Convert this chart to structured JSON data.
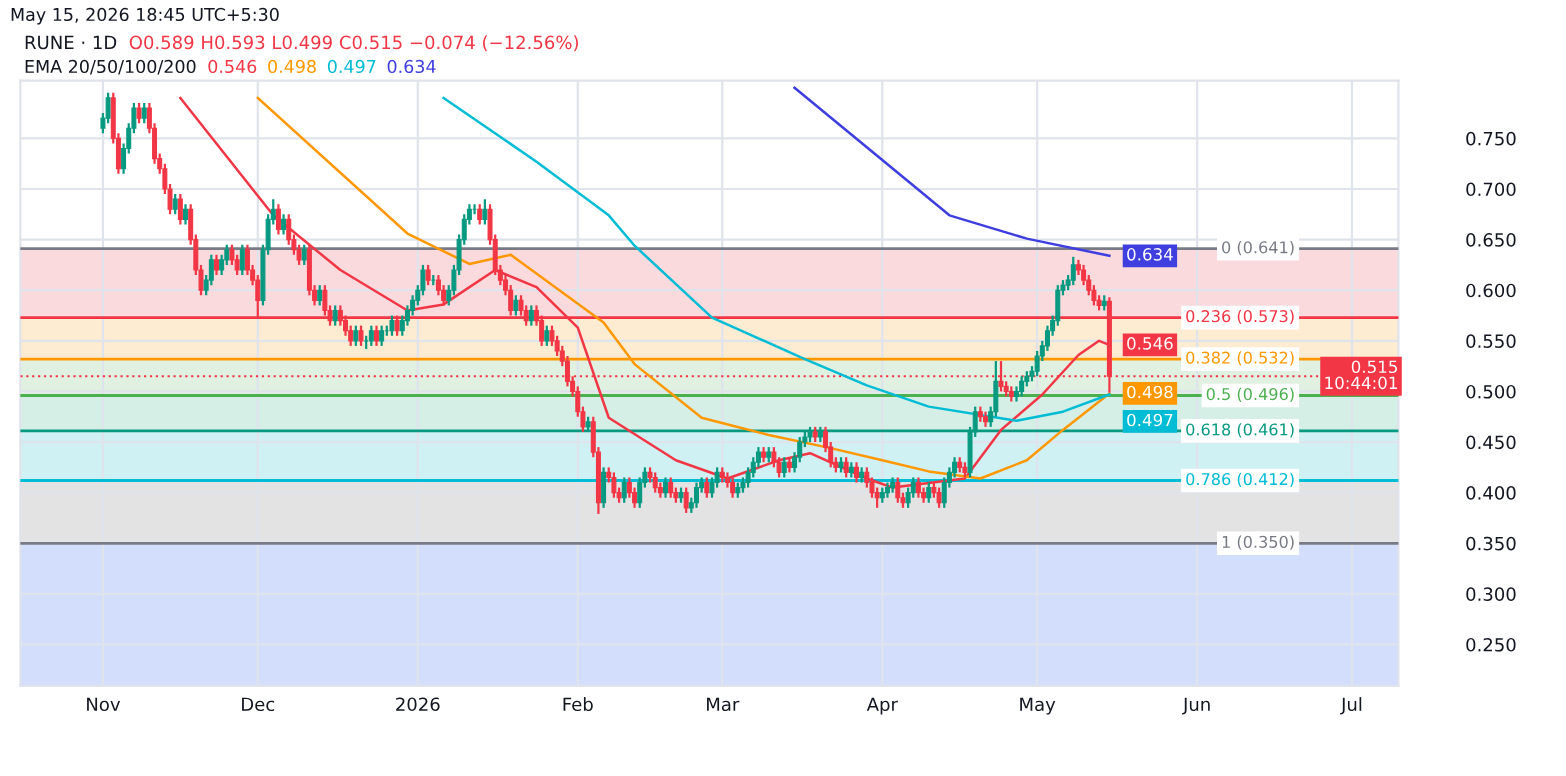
{
  "chart_data": {
    "type": "candlestick",
    "title": "RUNE · 1D",
    "subtitle": "O0.589 H0.593 L0.499 C0.515 −0.074 (−12.56%)",
    "annotations": [
      "May 15, 2026 18:45 UTC+5:30",
      "EMA 20/50/100/200"
    ],
    "grid": true,
    "xlim": [
      "2025-10-16",
      "2026-07-10"
    ],
    "xticks": [
      {
        "value": "2025-11-01",
        "label": "Nov"
      },
      {
        "value": "2025-12-01",
        "label": "Dec"
      },
      {
        "value": "2026-01-01",
        "label": "2026"
      },
      {
        "value": "2026-02-01",
        "label": "Feb"
      },
      {
        "value": "2026-03-01",
        "label": "Mar"
      },
      {
        "value": "2026-04-01",
        "label": "Apr"
      },
      {
        "value": "2026-05-01",
        "label": "May"
      },
      {
        "value": "2026-06-01",
        "label": "Jun"
      },
      {
        "value": "2026-07-01",
        "label": "Jul"
      }
    ],
    "ylim": [
      0.209,
      0.807
    ],
    "yticks": [
      {
        "value": 0.25,
        "label": "0.250"
      },
      {
        "value": 0.3,
        "label": "0.300"
      },
      {
        "value": 0.35,
        "label": "0.350"
      },
      {
        "value": 0.4,
        "label": "0.400"
      },
      {
        "value": 0.45,
        "label": "0.450"
      },
      {
        "value": 0.5,
        "label": "0.500"
      },
      {
        "value": 0.55,
        "label": "0.550"
      },
      {
        "value": 0.6,
        "label": "0.600"
      },
      {
        "value": 0.65,
        "label": "0.650"
      },
      {
        "value": 0.7,
        "label": "0.700"
      },
      {
        "value": 0.75,
        "label": "0.750"
      }
    ],
    "bands": [
      {
        "axis": "y",
        "from": 0.573,
        "to": 0.641,
        "color": "#fbdadd"
      },
      {
        "axis": "y",
        "from": 0.532,
        "to": 0.573,
        "color": "#fdebd2"
      },
      {
        "axis": "y",
        "from": 0.496,
        "to": 0.532,
        "color": "#e0f1e1"
      },
      {
        "axis": "y",
        "from": 0.461,
        "to": 0.496,
        "color": "#d5efe6"
      },
      {
        "axis": "y",
        "from": 0.412,
        "to": 0.461,
        "color": "#cff1f3"
      },
      {
        "axis": "y",
        "from": 0.35,
        "to": 0.412,
        "color": "#e3e3e3"
      },
      {
        "axis": "y",
        "from": 0.209,
        "to": 0.35,
        "color": "#d3defc"
      }
    ],
    "ref_lines": [
      {
        "axis": "y",
        "value": 0.641,
        "label": "0 (0.641)",
        "color": "#787b86",
        "line_style": "solid"
      },
      {
        "axis": "y",
        "value": 0.573,
        "label": "0.236 (0.573)",
        "color": "#f23645",
        "line_style": "solid"
      },
      {
        "axis": "y",
        "value": 0.532,
        "label": "0.382 (0.532)",
        "color": "#ff9800",
        "line_style": "solid"
      },
      {
        "axis": "y",
        "value": 0.496,
        "label": "0.5 (0.496)",
        "color": "#4caf50",
        "line_style": "solid"
      },
      {
        "axis": "y",
        "value": 0.461,
        "label": "0.618 (0.461)",
        "color": "#089981",
        "line_style": "solid"
      },
      {
        "axis": "y",
        "value": 0.412,
        "label": "0.786 (0.412)",
        "color": "#00bcd4",
        "line_style": "solid"
      },
      {
        "axis": "y",
        "value": 0.35,
        "label": "1 (0.350)",
        "color": "#787b86",
        "line_style": "solid"
      },
      {
        "axis": "y",
        "value": 0.515,
        "label": "0.515\n10:44:01",
        "color": "#f23645",
        "line_style": "dotted"
      }
    ],
    "series": [
      {
        "type": "line",
        "color": "#f23645",
        "x": [
          "2025-11-16",
          "2025-12-04",
          "2025-12-17",
          "2025-12-30",
          "2026-01-06",
          "2026-01-16",
          "2026-01-24",
          "2026-02-01",
          "2026-02-07",
          "2026-02-20",
          "2026-03-02",
          "2026-03-12",
          "2026-03-18",
          "2026-03-29",
          "2026-04-03",
          "2026-04-17",
          "2026-04-24",
          "2026-05-02",
          "2026-05-09",
          "2026-05-13",
          "2026-05-15"
        ],
        "values": [
          0.79,
          0.674,
          0.62,
          0.58,
          0.586,
          0.62,
          0.603,
          0.563,
          0.474,
          0.432,
          0.414,
          0.432,
          0.439,
          0.414,
          0.405,
          0.414,
          0.462,
          0.497,
          0.536,
          0.55,
          0.546
        ],
        "value_labels": [
          null,
          null,
          null,
          null,
          null,
          null,
          null,
          null,
          null,
          null,
          null,
          null,
          null,
          null,
          null,
          null,
          null,
          null,
          null,
          null,
          "0.546"
        ]
      },
      {
        "type": "line",
        "color": "#ff9800",
        "x": [
          "2025-12-01",
          "2025-12-30",
          "2026-01-11",
          "2026-01-19",
          "2026-02-06",
          "2026-02-12",
          "2026-02-25",
          "2026-03-10",
          "2026-03-22",
          "2026-04-01",
          "2026-04-10",
          "2026-04-20",
          "2026-04-29",
          "2026-05-06",
          "2026-05-15"
        ],
        "values": [
          0.79,
          0.656,
          0.626,
          0.635,
          0.568,
          0.527,
          0.474,
          0.457,
          0.444,
          0.432,
          0.421,
          0.414,
          0.432,
          0.462,
          0.498
        ],
        "value_labels": [
          null,
          null,
          null,
          null,
          null,
          null,
          null,
          null,
          null,
          null,
          null,
          null,
          null,
          null,
          "0.498"
        ]
      },
      {
        "type": "line",
        "color": "#00bcd4",
        "x": [
          "2026-01-06",
          "2026-01-24",
          "2026-02-07",
          "2026-02-12",
          "2026-02-27",
          "2026-03-17",
          "2026-03-29",
          "2026-04-10",
          "2026-04-27",
          "2026-05-06",
          "2026-05-15"
        ],
        "values": [
          0.79,
          0.727,
          0.674,
          0.644,
          0.573,
          0.532,
          0.506,
          0.485,
          0.471,
          0.48,
          0.497
        ],
        "value_labels": [
          null,
          null,
          null,
          null,
          null,
          null,
          null,
          null,
          null,
          null,
          "0.497"
        ]
      },
      {
        "type": "line",
        "color": "#3f3fe0",
        "x": [
          "2026-03-15",
          "2026-04-14",
          "2026-04-29",
          "2026-05-15"
        ],
        "values": [
          0.8,
          0.674,
          0.651,
          0.634
        ],
        "value_labels": [
          null,
          null,
          null,
          "0.634"
        ]
      }
    ],
    "x": [
      "2025-11-01",
      "2025-11-02",
      "2025-11-03",
      "2025-11-04",
      "2025-11-05",
      "2025-11-06",
      "2025-11-07",
      "2025-11-08",
      "2025-11-09",
      "2025-11-10",
      "2025-11-11",
      "2025-11-12",
      "2025-11-13",
      "2025-11-14",
      "2025-11-15",
      "2025-11-16",
      "2025-11-17",
      "2025-11-18",
      "2025-11-19",
      "2025-11-20",
      "2025-11-21",
      "2025-11-22",
      "2025-11-23",
      "2025-11-24",
      "2025-11-25",
      "2025-11-26",
      "2025-11-27",
      "2025-11-28",
      "2025-11-29",
      "2025-11-30",
      "2025-12-01",
      "2025-12-02",
      "2025-12-03",
      "2025-12-04",
      "2025-12-05",
      "2025-12-06",
      "2025-12-07",
      "2025-12-08",
      "2025-12-09",
      "2025-12-10",
      "2025-12-11",
      "2025-12-12",
      "2025-12-13",
      "2025-12-14",
      "2025-12-15",
      "2025-12-16",
      "2025-12-17",
      "2025-12-18",
      "2025-12-19",
      "2025-12-20",
      "2025-12-21",
      "2025-12-22",
      "2025-12-23",
      "2025-12-24",
      "2025-12-25",
      "2025-12-26",
      "2025-12-27",
      "2025-12-28",
      "2025-12-29",
      "2025-12-30",
      "2025-12-31",
      "2026-01-01",
      "2026-01-02",
      "2026-01-03",
      "2026-01-04",
      "2026-01-05",
      "2026-01-06",
      "2026-01-07",
      "2026-01-08",
      "2026-01-09",
      "2026-01-10",
      "2026-01-11",
      "2026-01-12",
      "2026-01-13",
      "2026-01-14",
      "2026-01-15",
      "2026-01-16",
      "2026-01-17",
      "2026-01-18",
      "2026-01-19",
      "2026-01-20",
      "2026-01-21",
      "2026-01-22",
      "2026-01-23",
      "2026-01-24",
      "2026-01-25",
      "2026-01-26",
      "2026-01-27",
      "2026-01-28",
      "2026-01-29",
      "2026-01-30",
      "2026-01-31",
      "2026-02-01",
      "2026-02-02",
      "2026-02-03",
      "2026-02-04",
      "2026-02-05",
      "2026-02-06",
      "2026-02-07",
      "2026-02-08",
      "2026-02-09",
      "2026-02-10",
      "2026-02-11",
      "2026-02-12",
      "2026-02-13",
      "2026-02-14",
      "2026-02-15",
      "2026-02-16",
      "2026-02-17",
      "2026-02-18",
      "2026-02-19",
      "2026-02-20",
      "2026-02-21",
      "2026-02-22",
      "2026-02-23",
      "2026-02-24",
      "2026-02-25",
      "2026-02-26",
      "2026-02-27",
      "2026-02-28",
      "2026-03-01",
      "2026-03-02",
      "2026-03-03",
      "2026-03-04",
      "2026-03-05",
      "2026-03-06",
      "2026-03-07",
      "2026-03-08",
      "2026-03-09",
      "2026-03-10",
      "2026-03-11",
      "2026-03-12",
      "2026-03-13",
      "2026-03-14",
      "2026-03-15",
      "2026-03-16",
      "2026-03-17",
      "2026-03-18",
      "2026-03-19",
      "2026-03-20",
      "2026-03-21",
      "2026-03-22",
      "2026-03-23",
      "2026-03-24",
      "2026-03-25",
      "2026-03-26",
      "2026-03-27",
      "2026-03-28",
      "2026-03-29",
      "2026-03-30",
      "2026-03-31",
      "2026-04-01",
      "2026-04-02",
      "2026-04-03",
      "2026-04-04",
      "2026-04-05",
      "2026-04-06",
      "2026-04-07",
      "2026-04-08",
      "2026-04-09",
      "2026-04-10",
      "2026-04-11",
      "2026-04-12",
      "2026-04-13",
      "2026-04-14",
      "2026-04-15",
      "2026-04-16",
      "2026-04-17",
      "2026-04-18",
      "2026-04-19",
      "2026-04-20",
      "2026-04-21",
      "2026-04-22",
      "2026-04-23",
      "2026-04-24",
      "2026-04-25",
      "2026-04-26",
      "2026-04-27",
      "2026-04-28",
      "2026-04-29",
      "2026-04-30",
      "2026-05-01",
      "2026-05-02",
      "2026-05-03",
      "2026-05-04",
      "2026-05-05",
      "2026-05-06",
      "2026-05-07",
      "2026-05-08",
      "2026-05-09",
      "2026-05-10",
      "2026-05-11",
      "2026-05-12",
      "2026-05-13",
      "2026-05-14",
      "2026-05-15"
    ],
    "ohlc": [
      [
        0.76,
        0.775,
        0.755,
        0.77
      ],
      [
        0.77,
        0.795,
        0.765,
        0.79
      ],
      [
        0.79,
        0.795,
        0.745,
        0.75
      ],
      [
        0.75,
        0.755,
        0.715,
        0.72
      ],
      [
        0.72,
        0.745,
        0.715,
        0.74
      ],
      [
        0.74,
        0.765,
        0.735,
        0.76
      ],
      [
        0.76,
        0.785,
        0.755,
        0.78
      ],
      [
        0.78,
        0.785,
        0.765,
        0.77
      ],
      [
        0.77,
        0.785,
        0.765,
        0.78
      ],
      [
        0.78,
        0.785,
        0.755,
        0.76
      ],
      [
        0.76,
        0.765,
        0.725,
        0.73
      ],
      [
        0.73,
        0.735,
        0.715,
        0.72
      ],
      [
        0.72,
        0.725,
        0.695,
        0.7
      ],
      [
        0.7,
        0.705,
        0.675,
        0.68
      ],
      [
        0.68,
        0.695,
        0.675,
        0.69
      ],
      [
        0.69,
        0.695,
        0.665,
        0.67
      ],
      [
        0.67,
        0.685,
        0.665,
        0.68
      ],
      [
        0.68,
        0.685,
        0.645,
        0.65
      ],
      [
        0.65,
        0.655,
        0.615,
        0.62
      ],
      [
        0.62,
        0.625,
        0.595,
        0.6
      ],
      [
        0.6,
        0.615,
        0.595,
        0.61
      ],
      [
        0.61,
        0.635,
        0.605,
        0.63
      ],
      [
        0.63,
        0.635,
        0.615,
        0.62
      ],
      [
        0.62,
        0.635,
        0.615,
        0.63
      ],
      [
        0.63,
        0.645,
        0.625,
        0.64
      ],
      [
        0.64,
        0.645,
        0.625,
        0.63
      ],
      [
        0.63,
        0.635,
        0.615,
        0.62
      ],
      [
        0.62,
        0.645,
        0.615,
        0.64
      ],
      [
        0.64,
        0.645,
        0.615,
        0.62
      ],
      [
        0.62,
        0.625,
        0.605,
        0.61
      ],
      [
        0.61,
        0.615,
        0.573,
        0.59
      ],
      [
        0.59,
        0.645,
        0.585,
        0.64
      ],
      [
        0.64,
        0.675,
        0.635,
        0.67
      ],
      [
        0.67,
        0.69,
        0.665,
        0.68
      ],
      [
        0.68,
        0.685,
        0.655,
        0.66
      ],
      [
        0.66,
        0.675,
        0.655,
        0.67
      ],
      [
        0.67,
        0.675,
        0.645,
        0.65
      ],
      [
        0.65,
        0.655,
        0.635,
        0.64
      ],
      [
        0.64,
        0.645,
        0.625,
        0.63
      ],
      [
        0.63,
        0.645,
        0.625,
        0.64
      ],
      [
        0.64,
        0.645,
        0.595,
        0.6
      ],
      [
        0.6,
        0.605,
        0.585,
        0.59
      ],
      [
        0.59,
        0.605,
        0.585,
        0.6
      ],
      [
        0.6,
        0.605,
        0.575,
        0.58
      ],
      [
        0.58,
        0.585,
        0.565,
        0.57
      ],
      [
        0.57,
        0.585,
        0.565,
        0.58
      ],
      [
        0.58,
        0.585,
        0.565,
        0.57
      ],
      [
        0.57,
        0.575,
        0.555,
        0.56
      ],
      [
        0.56,
        0.565,
        0.545,
        0.55
      ],
      [
        0.55,
        0.565,
        0.545,
        0.56
      ],
      [
        0.56,
        0.565,
        0.545,
        0.55
      ],
      [
        0.55,
        0.555,
        0.542,
        0.55
      ],
      [
        0.55,
        0.565,
        0.545,
        0.56
      ],
      [
        0.56,
        0.565,
        0.545,
        0.55
      ],
      [
        0.55,
        0.565,
        0.545,
        0.56
      ],
      [
        0.56,
        0.565,
        0.555,
        0.56
      ],
      [
        0.56,
        0.575,
        0.555,
        0.57
      ],
      [
        0.57,
        0.575,
        0.555,
        0.56
      ],
      [
        0.56,
        0.575,
        0.555,
        0.57
      ],
      [
        0.57,
        0.585,
        0.565,
        0.58
      ],
      [
        0.58,
        0.595,
        0.575,
        0.59
      ],
      [
        0.59,
        0.605,
        0.585,
        0.6
      ],
      [
        0.6,
        0.625,
        0.595,
        0.62
      ],
      [
        0.62,
        0.625,
        0.605,
        0.61
      ],
      [
        0.61,
        0.615,
        0.605,
        0.61
      ],
      [
        0.61,
        0.615,
        0.595,
        0.6
      ],
      [
        0.6,
        0.605,
        0.585,
        0.59
      ],
      [
        0.59,
        0.605,
        0.585,
        0.6
      ],
      [
        0.6,
        0.625,
        0.595,
        0.62
      ],
      [
        0.62,
        0.655,
        0.615,
        0.65
      ],
      [
        0.65,
        0.675,
        0.645,
        0.67
      ],
      [
        0.67,
        0.685,
        0.665,
        0.68
      ],
      [
        0.68,
        0.685,
        0.675,
        0.68
      ],
      [
        0.68,
        0.685,
        0.665,
        0.67
      ],
      [
        0.67,
        0.69,
        0.665,
        0.68
      ],
      [
        0.68,
        0.685,
        0.645,
        0.65
      ],
      [
        0.65,
        0.655,
        0.615,
        0.62
      ],
      [
        0.62,
        0.625,
        0.605,
        0.61
      ],
      [
        0.61,
        0.615,
        0.595,
        0.6
      ],
      [
        0.6,
        0.605,
        0.575,
        0.58
      ],
      [
        0.58,
        0.595,
        0.575,
        0.59
      ],
      [
        0.59,
        0.595,
        0.575,
        0.58
      ],
      [
        0.58,
        0.585,
        0.565,
        0.57
      ],
      [
        0.57,
        0.585,
        0.565,
        0.58
      ],
      [
        0.58,
        0.585,
        0.565,
        0.57
      ],
      [
        0.57,
        0.575,
        0.545,
        0.55
      ],
      [
        0.55,
        0.565,
        0.545,
        0.56
      ],
      [
        0.56,
        0.565,
        0.545,
        0.55
      ],
      [
        0.55,
        0.555,
        0.535,
        0.54
      ],
      [
        0.54,
        0.545,
        0.525,
        0.53
      ],
      [
        0.53,
        0.535,
        0.505,
        0.51
      ],
      [
        0.51,
        0.515,
        0.495,
        0.5
      ],
      [
        0.5,
        0.505,
        0.475,
        0.48
      ],
      [
        0.48,
        0.485,
        0.46,
        0.465
      ],
      [
        0.465,
        0.475,
        0.46,
        0.47
      ],
      [
        0.47,
        0.475,
        0.435,
        0.44
      ],
      [
        0.44,
        0.445,
        0.379,
        0.39
      ],
      [
        0.39,
        0.425,
        0.385,
        0.42
      ],
      [
        0.42,
        0.425,
        0.41,
        0.415
      ],
      [
        0.415,
        0.42,
        0.395,
        0.4
      ],
      [
        0.4,
        0.405,
        0.39,
        0.395
      ],
      [
        0.395,
        0.415,
        0.39,
        0.41
      ],
      [
        0.41,
        0.415,
        0.395,
        0.4
      ],
      [
        0.4,
        0.405,
        0.385,
        0.39
      ],
      [
        0.39,
        0.415,
        0.385,
        0.41
      ],
      [
        0.41,
        0.425,
        0.405,
        0.42
      ],
      [
        0.42,
        0.425,
        0.41,
        0.415
      ],
      [
        0.415,
        0.42,
        0.4,
        0.405
      ],
      [
        0.405,
        0.41,
        0.395,
        0.4
      ],
      [
        0.4,
        0.415,
        0.395,
        0.41
      ],
      [
        0.41,
        0.415,
        0.395,
        0.4
      ],
      [
        0.4,
        0.405,
        0.39,
        0.395
      ],
      [
        0.395,
        0.405,
        0.39,
        0.4
      ],
      [
        0.4,
        0.405,
        0.38,
        0.385
      ],
      [
        0.385,
        0.395,
        0.38,
        0.39
      ],
      [
        0.39,
        0.41,
        0.385,
        0.405
      ],
      [
        0.405,
        0.415,
        0.4,
        0.41
      ],
      [
        0.41,
        0.415,
        0.395,
        0.4
      ],
      [
        0.4,
        0.415,
        0.395,
        0.41
      ],
      [
        0.41,
        0.425,
        0.405,
        0.42
      ],
      [
        0.42,
        0.425,
        0.41,
        0.415
      ],
      [
        0.415,
        0.42,
        0.405,
        0.41
      ],
      [
        0.41,
        0.415,
        0.395,
        0.4
      ],
      [
        0.4,
        0.41,
        0.395,
        0.405
      ],
      [
        0.405,
        0.415,
        0.4,
        0.41
      ],
      [
        0.41,
        0.425,
        0.405,
        0.42
      ],
      [
        0.42,
        0.435,
        0.415,
        0.43
      ],
      [
        0.43,
        0.445,
        0.425,
        0.44
      ],
      [
        0.44,
        0.445,
        0.43,
        0.435
      ],
      [
        0.435,
        0.445,
        0.43,
        0.44
      ],
      [
        0.44,
        0.445,
        0.425,
        0.43
      ],
      [
        0.43,
        0.435,
        0.415,
        0.42
      ],
      [
        0.42,
        0.435,
        0.415,
        0.43
      ],
      [
        0.43,
        0.435,
        0.42,
        0.425
      ],
      [
        0.425,
        0.44,
        0.42,
        0.435
      ],
      [
        0.435,
        0.455,
        0.43,
        0.45
      ],
      [
        0.45,
        0.46,
        0.445,
        0.455
      ],
      [
        0.455,
        0.465,
        0.45,
        0.46
      ],
      [
        0.46,
        0.465,
        0.45,
        0.455
      ],
      [
        0.455,
        0.465,
        0.45,
        0.46
      ],
      [
        0.46,
        0.465,
        0.44,
        0.445
      ],
      [
        0.445,
        0.45,
        0.425,
        0.43
      ],
      [
        0.43,
        0.435,
        0.42,
        0.425
      ],
      [
        0.425,
        0.435,
        0.42,
        0.43
      ],
      [
        0.43,
        0.435,
        0.415,
        0.42
      ],
      [
        0.42,
        0.43,
        0.415,
        0.425
      ],
      [
        0.425,
        0.43,
        0.41,
        0.415
      ],
      [
        0.415,
        0.425,
        0.41,
        0.42
      ],
      [
        0.42,
        0.425,
        0.405,
        0.41
      ],
      [
        0.41,
        0.415,
        0.395,
        0.4
      ],
      [
        0.4,
        0.405,
        0.385,
        0.395
      ],
      [
        0.395,
        0.405,
        0.39,
        0.4
      ],
      [
        0.4,
        0.41,
        0.395,
        0.405
      ],
      [
        0.405,
        0.415,
        0.4,
        0.41
      ],
      [
        0.41,
        0.415,
        0.39,
        0.395
      ],
      [
        0.395,
        0.4,
        0.385,
        0.39
      ],
      [
        0.39,
        0.405,
        0.385,
        0.4
      ],
      [
        0.4,
        0.415,
        0.395,
        0.41
      ],
      [
        0.41,
        0.415,
        0.395,
        0.4
      ],
      [
        0.4,
        0.405,
        0.39,
        0.395
      ],
      [
        0.395,
        0.41,
        0.39,
        0.405
      ],
      [
        0.405,
        0.41,
        0.395,
        0.4
      ],
      [
        0.4,
        0.405,
        0.385,
        0.39
      ],
      [
        0.39,
        0.415,
        0.385,
        0.41
      ],
      [
        0.41,
        0.425,
        0.405,
        0.42
      ],
      [
        0.42,
        0.435,
        0.415,
        0.43
      ],
      [
        0.43,
        0.435,
        0.42,
        0.425
      ],
      [
        0.425,
        0.43,
        0.415,
        0.42
      ],
      [
        0.42,
        0.465,
        0.415,
        0.46
      ],
      [
        0.46,
        0.485,
        0.455,
        0.48
      ],
      [
        0.48,
        0.485,
        0.47,
        0.475
      ],
      [
        0.475,
        0.48,
        0.465,
        0.47
      ],
      [
        0.47,
        0.485,
        0.465,
        0.48
      ],
      [
        0.48,
        0.53,
        0.475,
        0.51
      ],
      [
        0.51,
        0.53,
        0.5,
        0.505
      ],
      [
        0.505,
        0.51,
        0.495,
        0.5
      ],
      [
        0.5,
        0.505,
        0.49,
        0.495
      ],
      [
        0.495,
        0.505,
        0.49,
        0.5
      ],
      [
        0.5,
        0.515,
        0.495,
        0.51
      ],
      [
        0.51,
        0.52,
        0.505,
        0.515
      ],
      [
        0.515,
        0.525,
        0.51,
        0.52
      ],
      [
        0.52,
        0.54,
        0.515,
        0.535
      ],
      [
        0.535,
        0.55,
        0.53,
        0.545
      ],
      [
        0.545,
        0.565,
        0.54,
        0.56
      ],
      [
        0.56,
        0.575,
        0.555,
        0.57
      ],
      [
        0.57,
        0.605,
        0.565,
        0.6
      ],
      [
        0.6,
        0.61,
        0.595,
        0.605
      ],
      [
        0.605,
        0.615,
        0.6,
        0.61
      ],
      [
        0.61,
        0.633,
        0.605,
        0.625
      ],
      [
        0.625,
        0.63,
        0.615,
        0.62
      ],
      [
        0.62,
        0.625,
        0.605,
        0.61
      ],
      [
        0.61,
        0.615,
        0.595,
        0.6
      ],
      [
        0.6,
        0.605,
        0.585,
        0.59
      ],
      [
        0.59,
        0.595,
        0.58,
        0.585
      ],
      [
        0.585,
        0.595,
        0.58,
        0.589
      ],
      [
        0.589,
        0.593,
        0.499,
        0.515
      ]
    ]
  }
}
